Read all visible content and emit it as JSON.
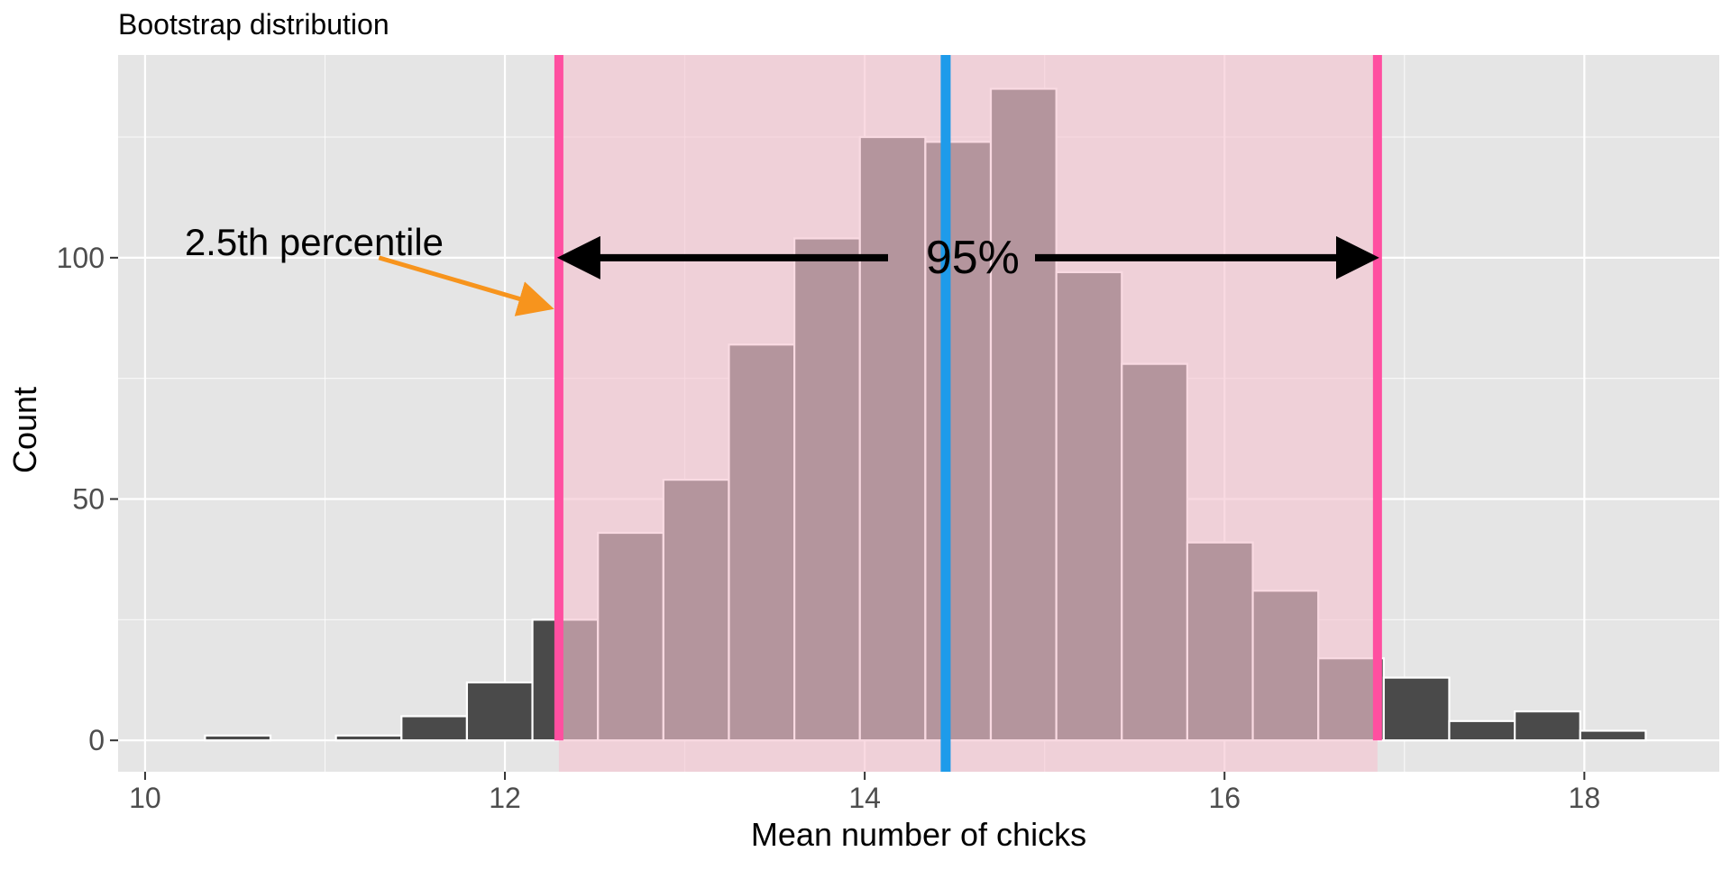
{
  "chart_data": {
    "type": "histogram",
    "title": "Bootstrap distribution",
    "xlabel": "Mean number of chicks",
    "ylabel": "Count",
    "xlim": [
      9.85,
      18.75
    ],
    "ylim": [
      -6.5,
      142
    ],
    "x_ticks": [
      10,
      12,
      14,
      16,
      18
    ],
    "y_ticks": [
      0,
      50,
      100
    ],
    "bin_width": 0.364,
    "bins": [
      {
        "x0": 10.333,
        "x1": 10.697,
        "count": 1
      },
      {
        "x0": 10.697,
        "x1": 11.061,
        "count": 0
      },
      {
        "x0": 11.061,
        "x1": 11.425,
        "count": 1
      },
      {
        "x0": 11.425,
        "x1": 11.789,
        "count": 5
      },
      {
        "x0": 11.789,
        "x1": 12.153,
        "count": 12
      },
      {
        "x0": 12.153,
        "x1": 12.517,
        "count": 25
      },
      {
        "x0": 12.517,
        "x1": 12.881,
        "count": 43
      },
      {
        "x0": 12.881,
        "x1": 13.245,
        "count": 54
      },
      {
        "x0": 13.245,
        "x1": 13.609,
        "count": 82
      },
      {
        "x0": 13.609,
        "x1": 13.973,
        "count": 104
      },
      {
        "x0": 13.973,
        "x1": 14.337,
        "count": 125
      },
      {
        "x0": 14.337,
        "x1": 14.701,
        "count": 124
      },
      {
        "x0": 14.701,
        "x1": 15.065,
        "count": 135
      },
      {
        "x0": 15.065,
        "x1": 15.429,
        "count": 97
      },
      {
        "x0": 15.429,
        "x1": 15.793,
        "count": 78
      },
      {
        "x0": 15.793,
        "x1": 16.157,
        "count": 41
      },
      {
        "x0": 16.157,
        "x1": 16.521,
        "count": 31
      },
      {
        "x0": 16.521,
        "x1": 16.885,
        "count": 17
      },
      {
        "x0": 16.885,
        "x1": 17.249,
        "count": 13
      },
      {
        "x0": 17.249,
        "x1": 17.613,
        "count": 4
      },
      {
        "x0": 17.613,
        "x1": 17.977,
        "count": 6
      },
      {
        "x0": 17.977,
        "x1": 18.341,
        "count": 2
      }
    ],
    "ci_lower": 12.3,
    "ci_upper": 16.85,
    "observed_mean": 14.45,
    "grid": true,
    "annotations": {
      "percent_label": "95%",
      "percent_label_y": 100,
      "arrow_y": 100,
      "lower_label": "2.5th percentile",
      "lower_label_x": 10.22,
      "lower_label_y": 103,
      "pointer_from": [
        11.3,
        100
      ],
      "pointer_to": [
        12.3,
        90
      ]
    },
    "colors": {
      "panel": "#e5e5e5",
      "grid_major": "#ffffff",
      "bar_fill": "#4a4a4a",
      "bar_stroke": "#ffffff",
      "ci_shade": "#f5c4d0",
      "ci_line": "#ff4fa0",
      "observed_line": "#1e9bea",
      "pointer_arrow": "#f7941d",
      "text": "#000000",
      "tick_text": "#4d4d4d"
    }
  }
}
